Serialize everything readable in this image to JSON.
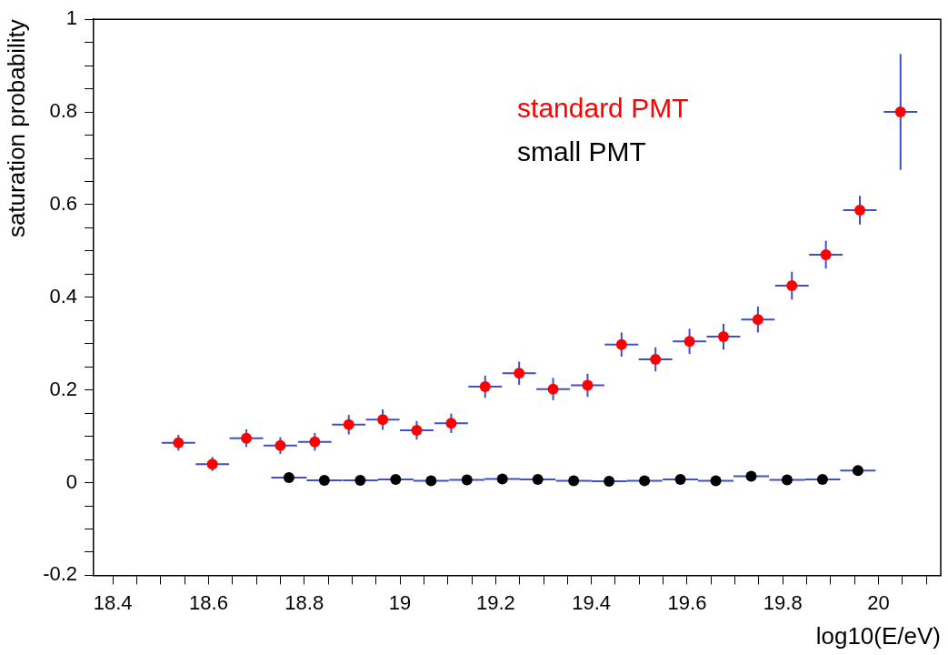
{
  "chart_data": {
    "type": "scatter",
    "xlabel": "log10(E/eV)",
    "ylabel": "saturation probability",
    "marker": "circle",
    "xlim": [
      18.36,
      20.13
    ],
    "ylim": [
      -0.2,
      1
    ],
    "xticks": [
      18.4,
      {
        "value": 18.45,
        "label": null
      },
      {
        "value": 18.5,
        "label": null
      },
      {
        "value": 18.55,
        "label": null
      },
      18.6,
      {
        "value": 18.65,
        "label": null
      },
      {
        "value": 18.7,
        "label": null
      },
      {
        "value": 18.75,
        "label": null
      },
      18.8,
      {
        "value": 18.85,
        "label": null
      },
      {
        "value": 18.9,
        "label": null
      },
      {
        "value": 18.95,
        "label": null
      },
      19,
      {
        "value": 19.05,
        "label": null
      },
      {
        "value": 19.1,
        "label": null
      },
      {
        "value": 19.15,
        "label": null
      },
      19.2,
      {
        "value": 19.25,
        "label": null
      },
      {
        "value": 19.3,
        "label": null
      },
      {
        "value": 19.35,
        "label": null
      },
      19.4,
      {
        "value": 19.45,
        "label": null
      },
      {
        "value": 19.5,
        "label": null
      },
      {
        "value": 19.55,
        "label": null
      },
      19.6,
      {
        "value": 19.65,
        "label": null
      },
      {
        "value": 19.7,
        "label": null
      },
      {
        "value": 19.75,
        "label": null
      },
      19.8,
      {
        "value": 19.85,
        "label": null
      },
      {
        "value": 19.9,
        "label": null
      },
      {
        "value": 19.95,
        "label": null
      },
      20,
      {
        "value": 20.05,
        "label": null
      },
      {
        "value": 20.1,
        "label": null
      }
    ],
    "yticks": [
      -0.2,
      {
        "value": -0.15,
        "label": null
      },
      {
        "value": -0.1,
        "label": null
      },
      {
        "value": -0.05,
        "label": null
      },
      0,
      {
        "value": 0.05,
        "label": null
      },
      {
        "value": 0.1,
        "label": null
      },
      {
        "value": 0.15,
        "label": null
      },
      0.2,
      {
        "value": 0.25,
        "label": null
      },
      {
        "value": 0.3,
        "label": null
      },
      {
        "value": 0.35,
        "label": null
      },
      0.4,
      {
        "value": 0.45,
        "label": null
      },
      {
        "value": 0.5,
        "label": null
      },
      {
        "value": 0.55,
        "label": null
      },
      0.6,
      {
        "value": 0.65,
        "label": null
      },
      {
        "value": 0.7,
        "label": null
      },
      {
        "value": 0.75,
        "label": null
      },
      0.8,
      {
        "value": 0.85,
        "label": null
      },
      {
        "value": 0.9,
        "label": null
      },
      {
        "value": 0.95,
        "label": null
      },
      1
    ],
    "series": [
      {
        "name": "standard PMT",
        "color": "#ff0000",
        "x": [
          18.537,
          18.608,
          18.679,
          18.75,
          18.822,
          18.893,
          18.964,
          19.035,
          19.107,
          19.178,
          19.249,
          19.32,
          19.392,
          19.463,
          19.534,
          19.605,
          19.676,
          19.748,
          19.819,
          19.89,
          19.961,
          20.046
        ],
        "values": [
          0.086,
          0.04,
          0.096,
          0.08,
          0.088,
          0.125,
          0.136,
          0.113,
          0.128,
          0.207,
          0.236,
          0.202,
          0.21,
          0.298,
          0.266,
          0.305,
          0.315,
          0.352,
          0.425,
          0.492,
          0.588,
          0.8
        ],
        "errors": [
          0.017,
          0.015,
          0.019,
          0.018,
          0.019,
          0.021,
          0.022,
          0.02,
          0.021,
          0.024,
          0.025,
          0.024,
          0.025,
          0.026,
          0.026,
          0.027,
          0.028,
          0.028,
          0.03,
          0.03,
          0.031,
          0.125
        ],
        "xerrors": [
          0.035,
          0.035,
          0.035,
          0.035,
          0.035,
          0.035,
          0.035,
          0.035,
          0.035,
          0.035,
          0.035,
          0.035,
          0.035,
          0.035,
          0.035,
          0.035,
          0.035,
          0.035,
          0.035,
          0.035,
          0.035,
          0.035
        ]
      },
      {
        "name": "small PMT",
        "color": "#000000",
        "x": [
          18.768,
          18.842,
          18.917,
          18.991,
          19.065,
          19.14,
          19.214,
          19.288,
          19.363,
          19.437,
          19.511,
          19.586,
          19.66,
          19.734,
          19.809,
          19.883,
          19.957
        ],
        "values": [
          0.011,
          0.005,
          0.005,
          0.007,
          0.004,
          0.006,
          0.008,
          0.007,
          0.004,
          0.003,
          0.004,
          0.007,
          0.004,
          0.014,
          0.006,
          0.007,
          0.026
        ],
        "xerrors": [
          0.037,
          0.037,
          0.037,
          0.037,
          0.037,
          0.037,
          0.037,
          0.037,
          0.037,
          0.037,
          0.037,
          0.037,
          0.037,
          0.037,
          0.037,
          0.037,
          0.037
        ]
      }
    ]
  }
}
